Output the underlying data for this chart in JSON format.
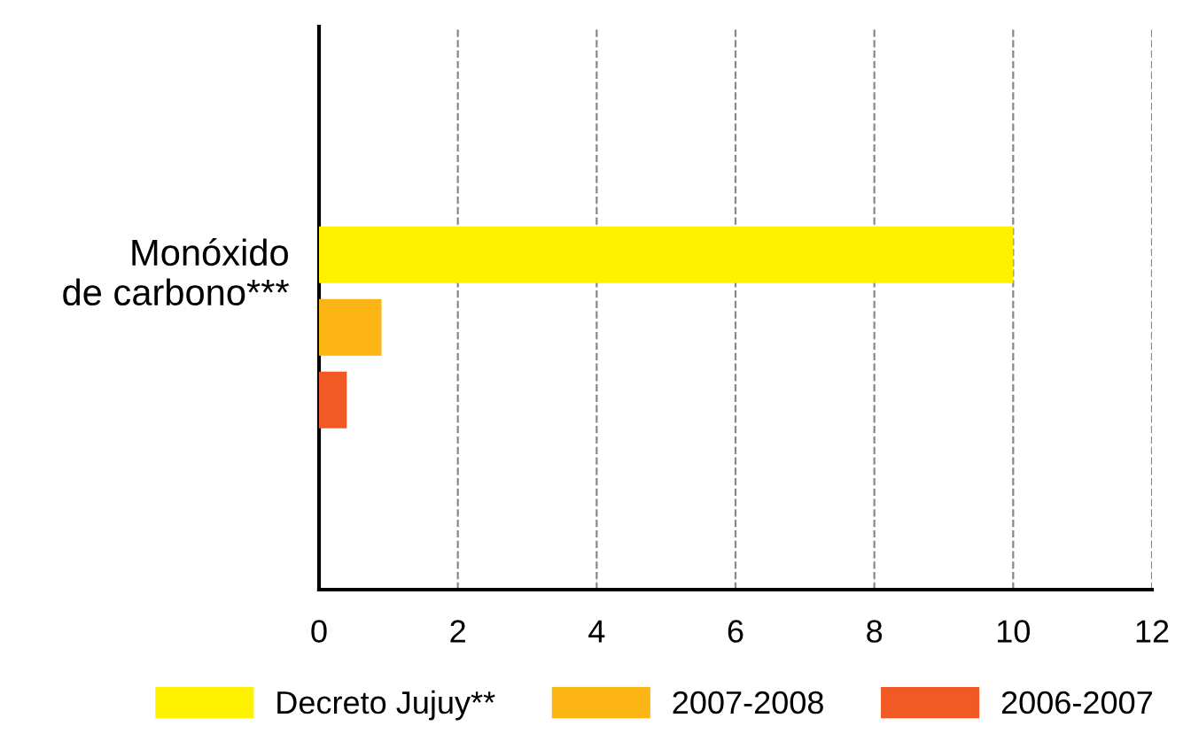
{
  "chart_data": {
    "type": "bar",
    "orientation": "horizontal",
    "categories": [
      "Monóxido\nde carbono***"
    ],
    "series": [
      {
        "name": "Decreto Jujuy**",
        "color": "#fff200",
        "values": [
          10
        ]
      },
      {
        "name": "2007-2008",
        "color": "#fdb515",
        "values": [
          0.9
        ]
      },
      {
        "name": "2006-2007",
        "color": "#f15a24",
        "values": [
          0.4
        ]
      }
    ],
    "xlim": [
      0,
      12
    ],
    "xticks": [
      0,
      2,
      4,
      6,
      8,
      10,
      12
    ],
    "grid": "x",
    "legend": "bottom"
  }
}
